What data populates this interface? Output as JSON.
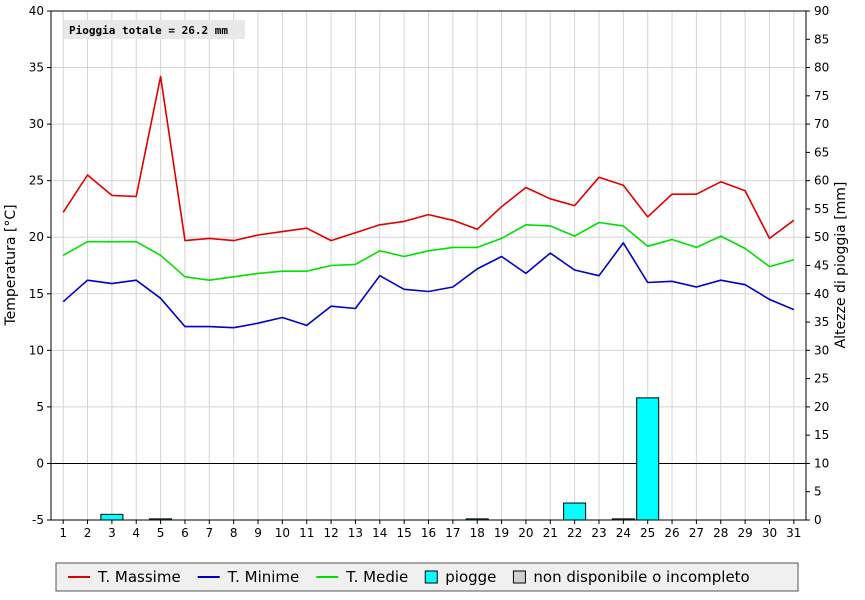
{
  "chart_data": {
    "type": "line",
    "annotation": "Pioggia totale = 26.2 mm",
    "x": [
      1,
      2,
      3,
      4,
      5,
      6,
      7,
      8,
      9,
      10,
      11,
      12,
      13,
      14,
      15,
      16,
      17,
      18,
      19,
      20,
      21,
      22,
      23,
      24,
      25,
      26,
      27,
      28,
      29,
      30,
      31
    ],
    "x_tick_labels": [
      "1",
      "2",
      "3",
      "4",
      "5",
      "6",
      "7",
      "8",
      "9",
      "10",
      "11",
      "12",
      "13",
      "14",
      "15",
      "16",
      "17",
      "18",
      "19",
      "20",
      "21",
      "22",
      "23",
      "24",
      "25",
      "26",
      "27",
      "28",
      "29",
      "30",
      "31"
    ],
    "ylabel_left": "Temperatura [°C]",
    "ylabel_right": "Altezze di pioggia [mm]",
    "ylim_left": [
      -5,
      40
    ],
    "ylim_right": [
      0,
      90
    ],
    "y_left_ticks": [
      "-5",
      "0",
      "5",
      "10",
      "15",
      "20",
      "25",
      "30",
      "35",
      "40"
    ],
    "y_right_ticks": [
      "0",
      "5",
      "10",
      "15",
      "20",
      "25",
      "30",
      "35",
      "40",
      "45",
      "50",
      "55",
      "60",
      "65",
      "70",
      "75",
      "80",
      "85",
      "90"
    ],
    "grid": true,
    "legend_position": "bottom",
    "series": [
      {
        "name": "T. Massime",
        "color": "#e00000",
        "axis": "left",
        "values": [
          22.2,
          25.5,
          23.7,
          23.6,
          34.2,
          19.7,
          19.9,
          19.7,
          20.2,
          20.5,
          20.8,
          19.7,
          20.4,
          21.1,
          21.4,
          22.0,
          21.5,
          20.7,
          22.7,
          24.4,
          23.4,
          22.8,
          25.3,
          24.6,
          21.8,
          23.8,
          23.8,
          24.9,
          24.1,
          19.9,
          21.5
        ]
      },
      {
        "name": "T. Minime",
        "color": "#0000c8",
        "axis": "left",
        "values": [
          14.3,
          16.2,
          15.9,
          16.2,
          14.6,
          12.1,
          12.1,
          12.0,
          12.4,
          12.9,
          12.2,
          13.9,
          13.7,
          16.6,
          15.4,
          15.2,
          15.6,
          17.2,
          18.3,
          16.8,
          18.6,
          17.1,
          16.6,
          19.5,
          16.0,
          16.1,
          15.6,
          16.2,
          15.8,
          14.5,
          13.6
        ]
      },
      {
        "name": "T. Medie",
        "color": "#00e000",
        "axis": "left",
        "values": [
          18.4,
          19.6,
          19.6,
          19.6,
          18.4,
          16.5,
          16.2,
          16.5,
          16.8,
          17.0,
          17.0,
          17.5,
          17.6,
          18.8,
          18.3,
          18.8,
          19.1,
          19.1,
          19.9,
          21.1,
          21.0,
          20.1,
          21.3,
          21.0,
          19.2,
          19.8,
          19.1,
          20.1,
          19.0,
          17.4,
          18.0
        ]
      },
      {
        "name": "piogge",
        "color": "#00ffff",
        "axis": "right",
        "type": "bar",
        "values": [
          0,
          0,
          1.0,
          0,
          0.2,
          0,
          0,
          0,
          0,
          0,
          0,
          0,
          0,
          0,
          0,
          0,
          0,
          0.2,
          0,
          0,
          0,
          3.0,
          0,
          0.2,
          21.6,
          0,
          0,
          0,
          0,
          0,
          0
        ]
      }
    ],
    "legend": [
      {
        "label": "T. Massime",
        "kind": "line",
        "color": "#e00000"
      },
      {
        "label": "T. Minime",
        "kind": "line",
        "color": "#0000c8"
      },
      {
        "label": "T. Medie",
        "kind": "line",
        "color": "#00e000"
      },
      {
        "label": "piogge",
        "kind": "box",
        "color": "#00ffff"
      },
      {
        "label": "non disponibile o incompleto",
        "kind": "box",
        "color": "#d0d0d0"
      }
    ]
  }
}
